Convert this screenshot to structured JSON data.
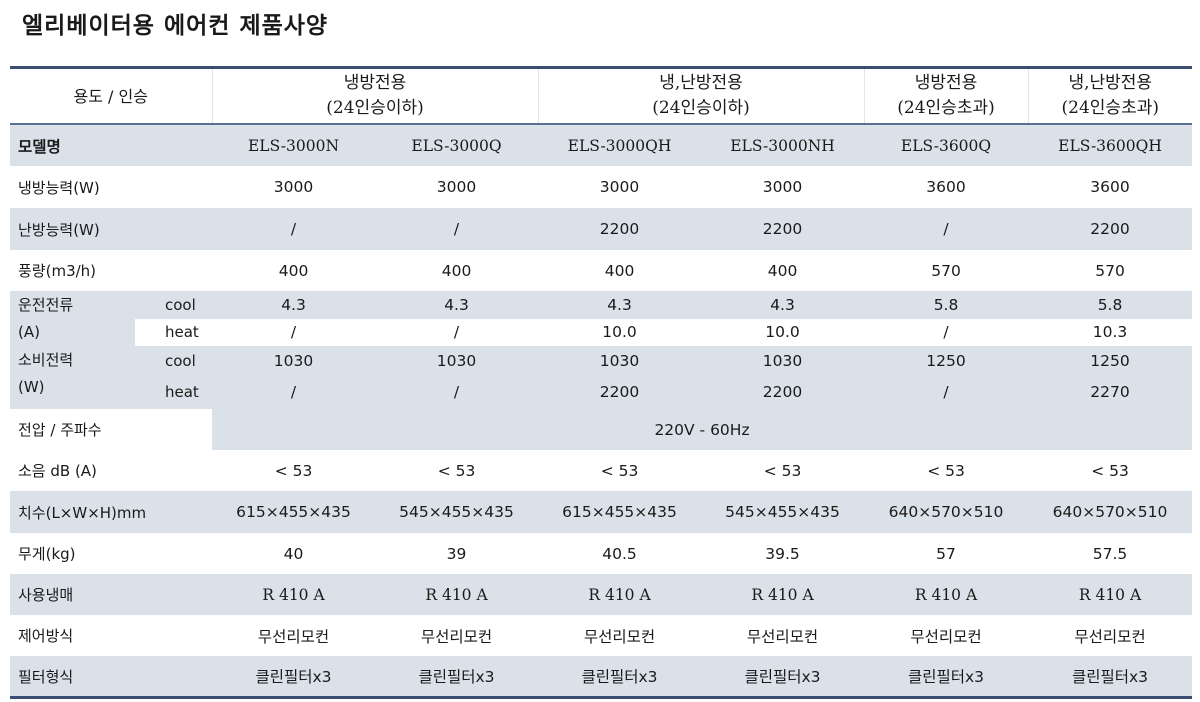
{
  "title": "엘리베이터용 에어컨 제품사양",
  "header": {
    "corner": "용도 / 인승",
    "groups": [
      {
        "line1": "냉방전용",
        "line2": "(24인승이하)"
      },
      {
        "line1": "냉,난방전용",
        "line2": "(24인승이하)"
      },
      {
        "line1": "냉방전용",
        "line2": "(24인승초과)"
      },
      {
        "line1": "냉,난방전용",
        "line2": "(24인승초과)"
      }
    ]
  },
  "model_row": {
    "label": "모델명",
    "models": [
      "ELS-3000N",
      "ELS-3000Q",
      "ELS-3000QH",
      "ELS-3000NH",
      "ELS-3600Q",
      "ELS-3600QH"
    ]
  },
  "rows": {
    "cooling": {
      "label": "냉방능력(W)",
      "values": [
        "3000",
        "3000",
        "3000",
        "3000",
        "3600",
        "3600"
      ]
    },
    "heating": {
      "label": "난방능력(W)",
      "values": [
        "/",
        "/",
        "2200",
        "2200",
        "/",
        "2200"
      ]
    },
    "airflow": {
      "label": "풍량(m3/h)",
      "values": [
        "400",
        "400",
        "400",
        "400",
        "570",
        "570"
      ]
    },
    "current": {
      "label_line1": "운전전류",
      "label_line2": "(A)",
      "cool": {
        "label": "cool",
        "values": [
          "4.3",
          "4.3",
          "4.3",
          "4.3",
          "5.8",
          "5.8"
        ]
      },
      "heat": {
        "label": "heat",
        "values": [
          "/",
          "/",
          "10.0",
          "10.0",
          "/",
          "10.3"
        ]
      }
    },
    "power": {
      "label_line1": "소비전력",
      "label_line2": "(W)",
      "cool": {
        "label": "cool",
        "values": [
          "1030",
          "1030",
          "1030",
          "1030",
          "1250",
          "1250"
        ]
      },
      "heat": {
        "label": "heat",
        "values": [
          "/",
          "/",
          "2200",
          "2200",
          "/",
          "2270"
        ]
      }
    },
    "voltage": {
      "label": "전압 / 주파수",
      "value": "220V - 60Hz"
    },
    "noise": {
      "label": "소음 dB (A)",
      "values": [
        "< 53",
        "< 53",
        "< 53",
        "< 53",
        "< 53",
        "< 53"
      ]
    },
    "size": {
      "label": "치수(L×W×H)mm",
      "values": [
        "615×455×435",
        "545×455×435",
        "615×455×435",
        "545×455×435",
        "640×570×510",
        "640×570×510"
      ]
    },
    "weight": {
      "label": "무게(kg)",
      "values": [
        "40",
        "39",
        "40.5",
        "39.5",
        "57",
        "57.5"
      ]
    },
    "refrigerant": {
      "label": "사용냉매",
      "values": [
        "R 410 A",
        "R 410 A",
        "R 410 A",
        "R 410 A",
        "R 410 A",
        "R 410 A"
      ]
    },
    "control": {
      "label": "제어방식",
      "values": [
        "무선리모컨",
        "무선리모컨",
        "무선리모컨",
        "무선리모컨",
        "무선리모컨",
        "무선리모컨"
      ]
    },
    "filter": {
      "label": "필터형식",
      "values": [
        "클린필터x3",
        "클린필터x3",
        "클린필터x3",
        "클린필터x3",
        "클린필터x3",
        "클린필터x3"
      ]
    }
  }
}
